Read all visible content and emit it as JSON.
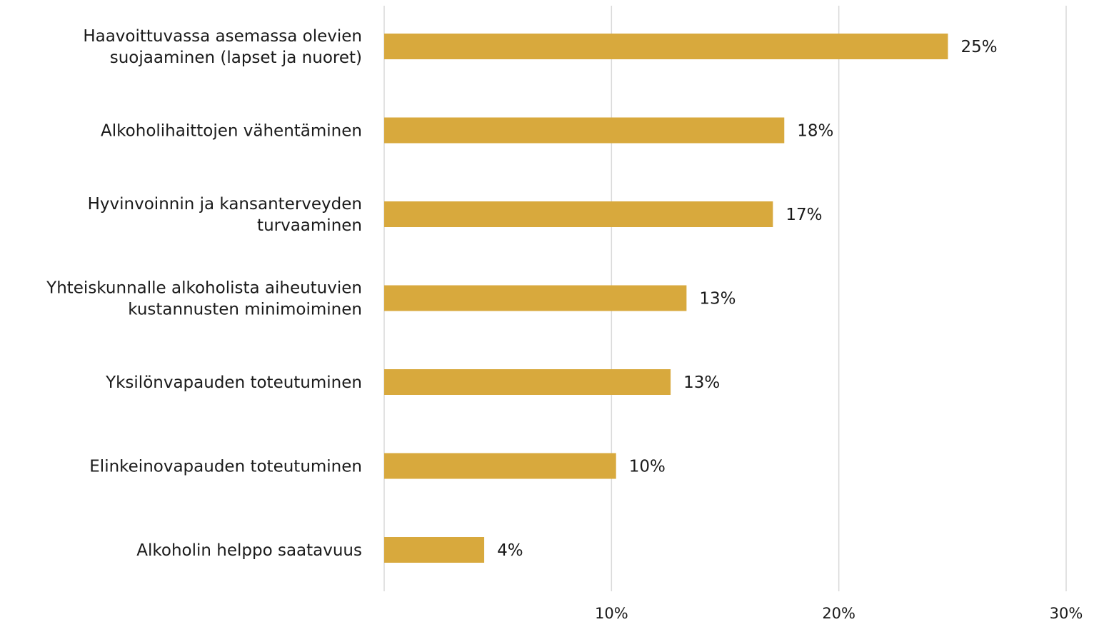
{
  "chart_data": {
    "type": "bar",
    "orientation": "horizontal",
    "categories": [
      "Haavoittuvassa asemassa olevien suojaaminen (lapset ja nuoret)",
      "Alkoholihaittojen vähentäminen",
      "Hyvinvoinnin ja kansanterveyden turvaaminen",
      "Yhteiskunnalle alkoholista aiheutuvien kustannusten minimoiminen",
      "Yksilönvapauden toteutuminen",
      "Elinkeinovapauden toteutuminen",
      "Alkoholin helppo saatavuus"
    ],
    "category_lines": [
      [
        "Haavoittuvassa asemassa olevien",
        "suojaaminen (lapset ja nuoret)"
      ],
      [
        "Alkoholihaittojen vähentäminen"
      ],
      [
        "Hyvinvoinnin ja kansanterveyden",
        "turvaaminen"
      ],
      [
        "Yhteiskunnalle alkoholista aiheutuvien",
        "kustannusten minimoiminen"
      ],
      [
        "Yksilönvapauden toteutuminen"
      ],
      [
        "Elinkeinovapauden toteutuminen"
      ],
      [
        "Alkoholin helppo saatavuus"
      ]
    ],
    "values": [
      24.8,
      17.6,
      17.1,
      13.3,
      12.6,
      10.2,
      4.4
    ],
    "value_labels": [
      "25%",
      "18%",
      "17%",
      "13%",
      "13%",
      "10%",
      "4%"
    ],
    "xlim": [
      0,
      30
    ],
    "x_ticks": [
      10,
      20,
      30
    ],
    "x_tick_labels": [
      "10%",
      "20%",
      "30%"
    ],
    "title": "",
    "xlabel": "",
    "ylabel": "",
    "grid": "vertical",
    "legend": "none",
    "bar_color": "#D8A93D",
    "grid_color": "#D9D9D9"
  }
}
